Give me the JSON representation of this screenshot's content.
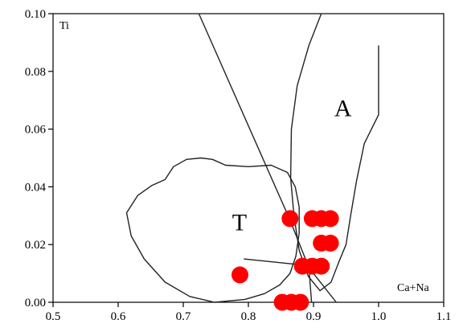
{
  "chart_data": {
    "type": "scatter",
    "xlabel": "Ca+Na",
    "ylabel": "Ti",
    "xlim": [
      0.5,
      1.1
    ],
    "ylim": [
      0.0,
      0.1
    ],
    "x_ticks": [
      "0.5",
      "0.6",
      "0.7",
      "0.8",
      "0.9",
      "1.0",
      "1.1"
    ],
    "y_ticks": [
      "0.00",
      "0.02",
      "0.04",
      "0.06",
      "0.08",
      "0.10"
    ],
    "x_tick_values": [
      0.5,
      0.6,
      0.7,
      0.8,
      0.9,
      1.0,
      1.1
    ],
    "y_tick_values": [
      0.0,
      0.02,
      0.04,
      0.06,
      0.08,
      0.1
    ],
    "grid": false,
    "marker_color": "#ff0000",
    "points": [
      {
        "x": 0.864,
        "y": 0.029
      },
      {
        "x": 0.898,
        "y": 0.029
      },
      {
        "x": 0.912,
        "y": 0.029
      },
      {
        "x": 0.926,
        "y": 0.029
      },
      {
        "x": 0.912,
        "y": 0.0205
      },
      {
        "x": 0.926,
        "y": 0.0205
      },
      {
        "x": 0.883,
        "y": 0.0125
      },
      {
        "x": 0.898,
        "y": 0.0125
      },
      {
        "x": 0.912,
        "y": 0.0125
      },
      {
        "x": 0.787,
        "y": 0.0095
      },
      {
        "x": 0.852,
        "y": 0.0
      },
      {
        "x": 0.866,
        "y": 0.0
      },
      {
        "x": 0.88,
        "y": 0.0
      }
    ],
    "fields": [
      {
        "label": "T",
        "label_at": [
          0.775,
          0.025
        ],
        "boundary": [
          [
            0.672,
            0.0425
          ],
          [
            0.685,
            0.047
          ],
          [
            0.705,
            0.0495
          ],
          [
            0.727,
            0.05
          ],
          [
            0.745,
            0.0495
          ],
          [
            0.765,
            0.0475
          ],
          [
            0.8,
            0.047
          ],
          [
            0.835,
            0.0475
          ],
          [
            0.86,
            0.045
          ],
          [
            0.872,
            0.04
          ],
          [
            0.878,
            0.033
          ],
          [
            0.878,
            0.024
          ],
          [
            0.873,
            0.016
          ],
          [
            0.864,
            0.01
          ],
          [
            0.848,
            0.006
          ],
          [
            0.825,
            0.003
          ],
          [
            0.795,
            0.001
          ],
          [
            0.748,
            0.0
          ],
          [
            0.71,
            0.002
          ],
          [
            0.672,
            0.007
          ],
          [
            0.64,
            0.015
          ],
          [
            0.62,
            0.023
          ],
          [
            0.613,
            0.031
          ],
          [
            0.63,
            0.037
          ],
          [
            0.652,
            0.0405
          ],
          [
            0.672,
            0.0425
          ]
        ]
      },
      {
        "label": "A",
        "label_at": [
          0.932,
          0.0645
        ],
        "boundary": [
          [
            1.0,
            0.089
          ],
          [
            1.0,
            0.065
          ],
          [
            0.978,
            0.055
          ],
          [
            0.966,
            0.042
          ],
          [
            0.957,
            0.03
          ],
          [
            0.95,
            0.02
          ],
          [
            0.939,
            0.014
          ],
          [
            0.927,
            0.007
          ],
          [
            0.91,
            0.004
          ],
          [
            0.892,
            0.009
          ],
          [
            0.878,
            0.018
          ],
          [
            0.87,
            0.03
          ],
          [
            0.865,
            0.043
          ],
          [
            0.866,
            0.06
          ],
          [
            0.875,
            0.075
          ],
          [
            0.893,
            0.089
          ],
          [
            0.912,
            0.1
          ]
        ]
      }
    ],
    "lines": [
      [
        [
          0.724,
          0.1
        ],
        [
          0.863,
          0.029
        ],
        [
          0.893,
          0.012
        ],
        [
          0.935,
          0.0
        ]
      ],
      [
        [
          0.793,
          0.015
        ],
        [
          0.923,
          0.012
        ]
      ],
      [
        [
          0.893,
          0.012
        ],
        [
          0.897,
          0.0
        ]
      ]
    ]
  }
}
